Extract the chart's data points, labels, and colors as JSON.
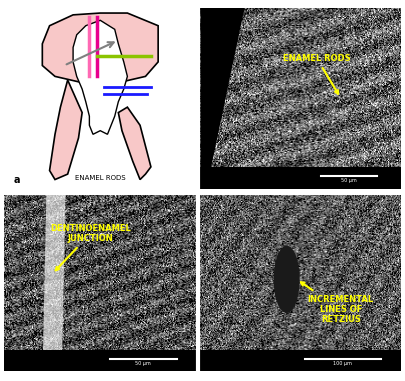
{
  "figsize": [
    4.05,
    3.81
  ],
  "dpi": 100,
  "background_color": "#ffffff",
  "label_fontsize": 7,
  "label_color": "#000000",
  "panel_a": {
    "label_text": "ENAMEL RODS",
    "label_color": "#000000",
    "label_fontsize": 5
  },
  "panel_b": {
    "annotation_text": "ENAMEL RODS",
    "annotation_color": "#ffff00",
    "annotation_fontsize": 6,
    "arrow_color": "#ffff00"
  },
  "panel_c": {
    "annotation_text": "DENTINOENAMEL\nJUNCTION",
    "annotation_color": "#ffff00",
    "annotation_fontsize": 6,
    "arrow_color": "#ffff00"
  },
  "panel_d": {
    "annotation_text": "INCREMENTAL\nLINES OF\nRETZIUS",
    "annotation_color": "#ffff00",
    "annotation_fontsize": 6,
    "arrow_color": "#ffff00"
  }
}
